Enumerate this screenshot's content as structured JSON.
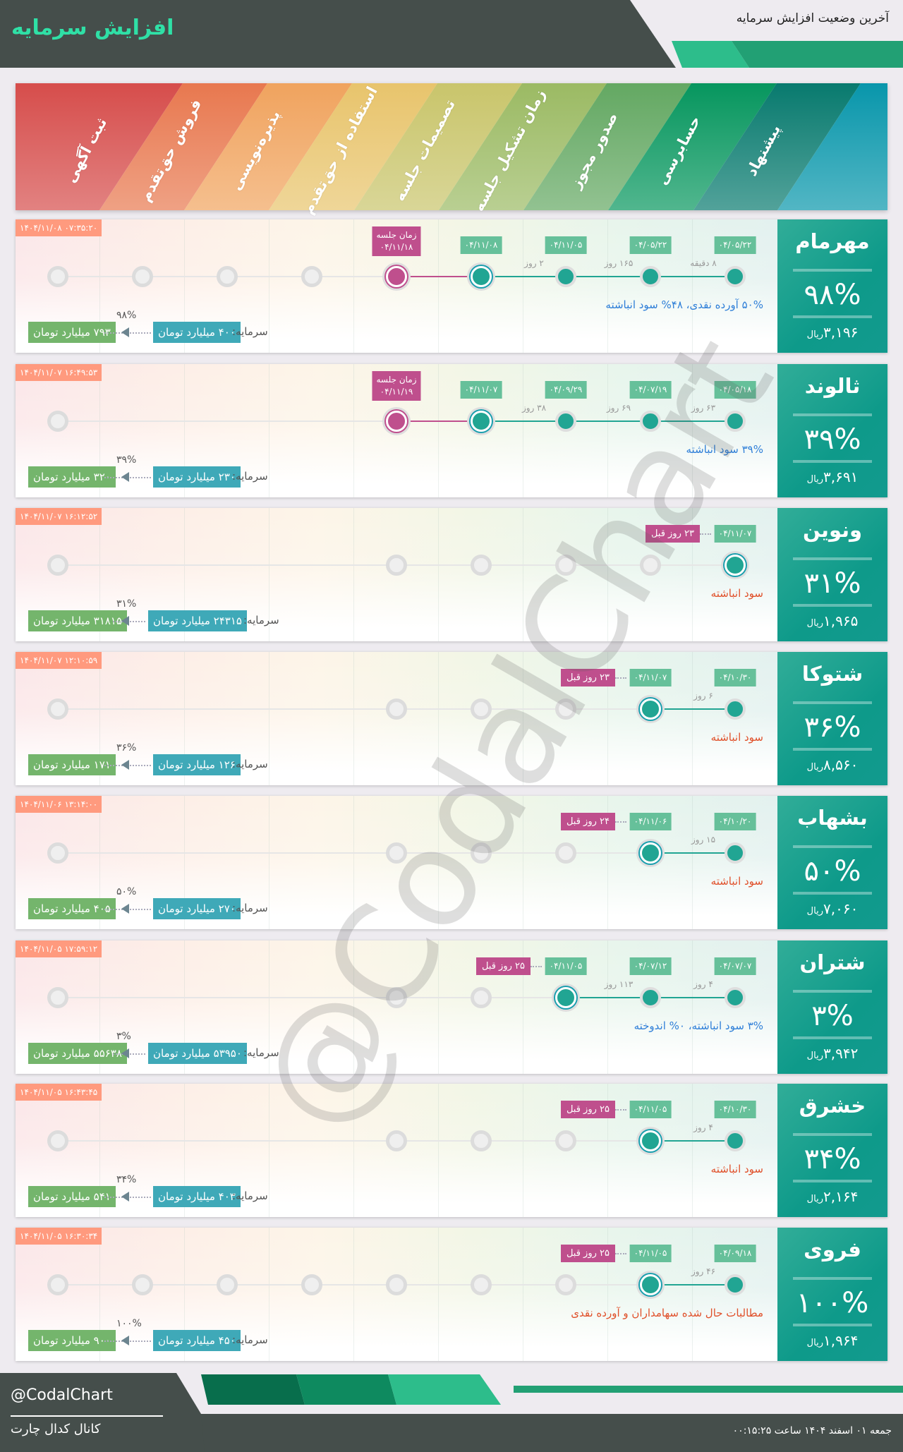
{
  "header": {
    "title": "افزایش سرمایه",
    "subtitle": "آخرین وضعیت افزایش سرمایه"
  },
  "stages": [
    "ثبت آگهی",
    "فروش حق‌تقدم",
    "پذیره‌نویسی",
    "استفاده از حق‌تقدم",
    "تصمیمات جلسه",
    "زمان تشکیل جلسه",
    "صدور مجوز",
    "حسابرسی",
    "پیشنهاد"
  ],
  "stage_colors": [
    "#d64d4b",
    "#e8784f",
    "#f0a35e",
    "#e8c46c",
    "#c9c56b",
    "#9bba63",
    "#63a862",
    "#06965e",
    "#087a6e",
    "#0896ab"
  ],
  "colors": {
    "accent": "#21a593",
    "meeting": "#bf4f8d",
    "date": "#66c09a",
    "timestamp": "#ff9a7e",
    "note_blue": "#2f7fd8",
    "note_orange": "#e0502a"
  },
  "labels": {
    "capital": "سرمایه:",
    "currency": "ریال"
  },
  "watermark": "@CodalChart",
  "rows": [
    {
      "name": "مهرمام",
      "percent": "۹۸%",
      "price": "۳,۱۹۶",
      "timestamp": "۱۴۰۴/۱۱/۰۸ ۰۷:۳۵:۲۰",
      "note": "۵۰% آورده نقدی، ۴۸% سود انباشته",
      "note_color": "blue",
      "old_capital": "۴۰۰ میلیارد تومان",
      "new_capital": "۷۹۳ میلیارد تومان",
      "increase": "۹۸%",
      "states": [
        "done",
        "done",
        "done",
        "current",
        "meeting",
        "pending",
        "pending",
        "pending",
        "pending"
      ],
      "dates": [
        "۰۴/۰۵/۲۲",
        "۰۴/۰۵/۲۲",
        "۰۴/۱۱/۰۵",
        "۰۴/۱۱/۰۸"
      ],
      "gaps": [
        "۸ دقیقه",
        "۱۶۵ روز",
        "۲ روز"
      ],
      "meeting": {
        "label": "زمان جلسه",
        "date": "۰۴/۱۱/۱۸"
      }
    },
    {
      "name": "ثالوند",
      "percent": "۳۹%",
      "price": "۳,۶۹۱",
      "timestamp": "۱۴۰۴/۱۱/۰۷ ۱۶:۴۹:۵۳",
      "note": "۳۹% سود انباشته",
      "note_color": "blue",
      "old_capital": "۲۳۰ میلیارد تومان",
      "new_capital": "۳۲۰ میلیارد تومان",
      "increase": "۳۹%",
      "states": [
        "done",
        "done",
        "done",
        "current",
        "meeting",
        "hidden",
        "hidden",
        "hidden",
        "pending"
      ],
      "dates": [
        "۰۴/۰۵/۱۸",
        "۰۴/۰۷/۱۹",
        "۰۴/۰۹/۲۹",
        "۰۴/۱۱/۰۷"
      ],
      "gaps": [
        "۶۳ روز",
        "۶۹ روز",
        "۳۸ روز"
      ],
      "meeting": {
        "label": "زمان جلسه",
        "date": "۰۴/۱۱/۱۹"
      }
    },
    {
      "name": "ونوین",
      "percent": "۳۱%",
      "price": "۱,۹۶۵",
      "timestamp": "۱۴۰۴/۱۱/۰۷ ۱۶:۱۲:۵۲",
      "note": "سود انباشته",
      "note_color": "orange",
      "old_capital": "۲۴۳۱۵ میلیارد تومان",
      "new_capital": "۳۱۸۱۵ میلیارد تومان",
      "increase": "۳۱%",
      "states": [
        "current",
        "pending",
        "pending",
        "pending",
        "pending",
        "hidden",
        "hidden",
        "hidden",
        "pending"
      ],
      "dates": [
        "۰۴/۱۱/۰۷"
      ],
      "gaps": [],
      "ago": "۲۳ روز قبل"
    },
    {
      "name": "شتوکا",
      "percent": "۳۶%",
      "price": "۸,۵۶۰",
      "timestamp": "۱۴۰۴/۱۱/۰۷ ۱۲:۱۰:۵۹",
      "note": "سود انباشته",
      "note_color": "orange",
      "old_capital": "۱۲۶ میلیارد تومان",
      "new_capital": "۱۷۱ میلیارد تومان",
      "increase": "۳۶%",
      "states": [
        "done",
        "current",
        "pending",
        "pending",
        "pending",
        "hidden",
        "hidden",
        "hidden",
        "pending"
      ],
      "dates": [
        "۰۴/۱۰/۳۰",
        "۰۴/۱۱/۰۷"
      ],
      "gaps": [
        "۶ روز"
      ],
      "ago": "۲۳ روز قبل"
    },
    {
      "name": "بشهاب",
      "percent": "۵۰%",
      "price": "۷,۰۶۰",
      "timestamp": "۱۴۰۴/۱۱/۰۶ ۱۳:۱۴:۰۰",
      "note": "سود انباشته",
      "note_color": "orange",
      "old_capital": "۲۷۰ میلیارد تومان",
      "new_capital": "۴۰۵ میلیارد تومان",
      "increase": "۵۰%",
      "states": [
        "done",
        "current",
        "pending",
        "pending",
        "pending",
        "hidden",
        "hidden",
        "hidden",
        "pending"
      ],
      "dates": [
        "۰۴/۱۰/۲۰",
        "۰۴/۱۱/۰۶"
      ],
      "gaps": [
        "۱۵ روز"
      ],
      "ago": "۲۴ روز قبل"
    },
    {
      "name": "شتران",
      "percent": "۳%",
      "price": "۳,۹۴۲",
      "timestamp": "۱۴۰۴/۱۱/۰۵ ۱۷:۵۹:۱۲",
      "note": "۳% سود انباشته، ۰% اندوخته",
      "note_color": "blue",
      "old_capital": "۵۳۹۵۰ میلیارد تومان",
      "new_capital": "۵۵۶۳۸ میلیارد تومان",
      "increase": "۳%",
      "states": [
        "done",
        "done",
        "current",
        "pending",
        "pending",
        "hidden",
        "hidden",
        "hidden",
        "pending"
      ],
      "dates": [
        "۰۴/۰۷/۰۷",
        "۰۴/۰۷/۱۲",
        "۰۴/۱۱/۰۵"
      ],
      "gaps": [
        "۴ روز",
        "۱۱۳ روز"
      ],
      "ago": "۲۵ روز قبل"
    },
    {
      "name": "خشرق",
      "percent": "۳۴%",
      "price": "۲,۱۶۴",
      "timestamp": "۱۴۰۴/۱۱/۰۵ ۱۶:۴۳:۴۵",
      "note": "سود انباشته",
      "note_color": "orange",
      "old_capital": "۴۰۳ میلیارد تومان",
      "new_capital": "۵۴۱ میلیارد تومان",
      "increase": "۳۴%",
      "states": [
        "done",
        "current",
        "pending",
        "pending",
        "pending",
        "hidden",
        "hidden",
        "hidden",
        "pending"
      ],
      "dates": [
        "۰۴/۱۰/۳۰",
        "۰۴/۱۱/۰۵"
      ],
      "gaps": [
        "۴ روز"
      ],
      "ago": "۲۵ روز قبل"
    },
    {
      "name": "فروی",
      "percent": "۱۰۰%",
      "price": "۱,۹۶۴",
      "timestamp": "۱۴۰۴/۱۱/۰۵ ۱۶:۳۰:۳۴",
      "note": "مطالبات حال شده سهامداران و آورده نقدی",
      "note_color": "orange",
      "old_capital": "۴۵۰ میلیارد تومان",
      "new_capital": "۹۰۰ میلیارد تومان",
      "increase": "۱۰۰%",
      "states": [
        "done",
        "current",
        "pending",
        "pending",
        "pending",
        "pending",
        "pending",
        "pending",
        "pending"
      ],
      "dates": [
        "۰۴/۰۹/۱۸",
        "۰۴/۱۱/۰۵"
      ],
      "gaps": [
        "۴۶ روز"
      ],
      "ago": "۲۵ روز قبل"
    }
  ],
  "footer": {
    "handle": "@CodalChart",
    "channel": "کانال کدال چارت",
    "datetime": "جمعه ۰۱ اسفند ۱۴۰۴ ساعت ۰۰:۱۵:۲۵"
  }
}
